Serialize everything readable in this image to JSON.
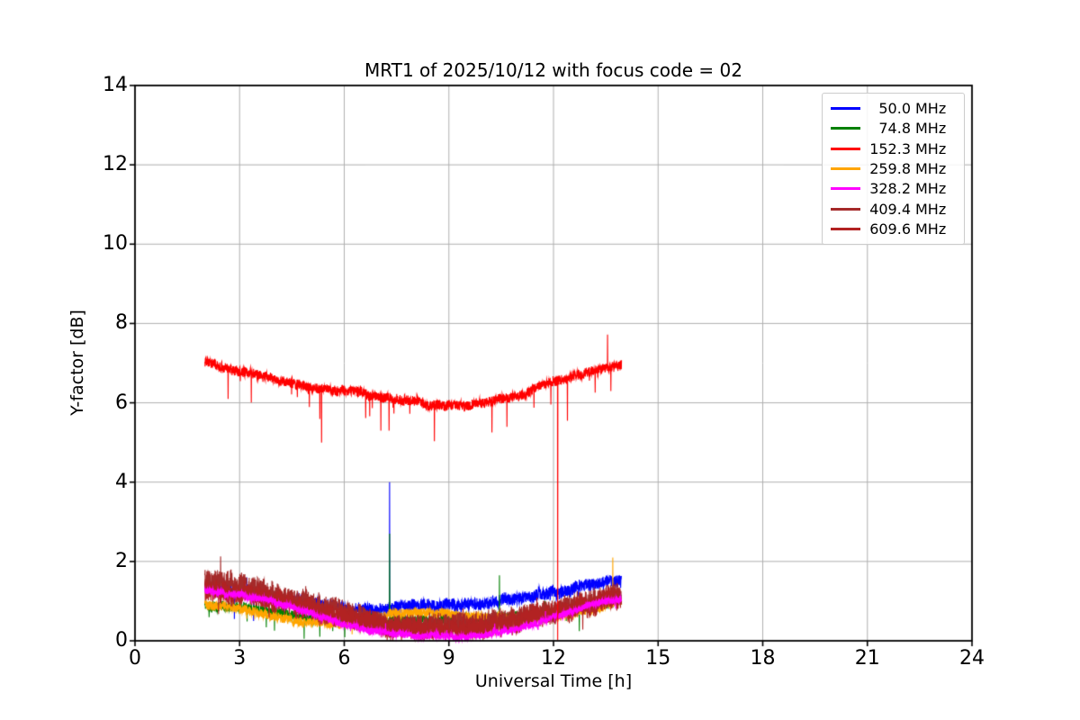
{
  "chart_data": {
    "type": "line",
    "title": "MRT1 of 2025/10/12 with focus code = 02",
    "xlabel": "Universal Time [h]",
    "ylabel": "Y-factor [dB]",
    "xlim": [
      0,
      24
    ],
    "ylim": [
      0,
      14
    ],
    "xticks": [
      0,
      3,
      6,
      9,
      12,
      15,
      18,
      21,
      24
    ],
    "yticks": [
      0,
      2,
      4,
      6,
      8,
      10,
      12,
      14
    ],
    "grid": true,
    "grid_color": "#b0b0b0",
    "axis_color": "#000000",
    "legend_position": "upper right",
    "time_range_hours": [
      2.0,
      13.95
    ],
    "control_hours": [
      2,
      3,
      4,
      5,
      6,
      7,
      8,
      9,
      10,
      11,
      12,
      13,
      14
    ],
    "series": [
      {
        "label": "50.0 MHz",
        "color": "#0000ff",
        "mean": [
          1.35,
          1.25,
          1.1,
          0.95,
          0.82,
          0.8,
          0.88,
          0.92,
          0.95,
          1.05,
          1.2,
          1.4,
          1.55
        ],
        "noise_amp": 0.16,
        "dip_p": 0.004,
        "dip_max": 0.55,
        "spikes": [
          {
            "t": 7.3,
            "v": 4.0
          },
          {
            "t": 2.85,
            "v": 0.55
          },
          {
            "t": 3.4,
            "v": 0.5
          }
        ]
      },
      {
        "label": "74.8 MHz",
        "color": "#008000",
        "mean": [
          0.9,
          0.85,
          0.72,
          0.55,
          0.48,
          0.52,
          0.55,
          0.55,
          0.55,
          0.62,
          0.72,
          0.88,
          1.05
        ],
        "noise_amp": 0.13,
        "dip_p": 0.006,
        "dip_max": 0.45,
        "spikes": [
          {
            "t": 7.3,
            "v": 2.7
          },
          {
            "t": 10.45,
            "v": 1.65
          },
          {
            "t": 4.85,
            "v": 0.05
          },
          {
            "t": 5.3,
            "v": 0.1
          }
        ]
      },
      {
        "label": "152.3 MHz",
        "color": "#ff0000",
        "mean": [
          7.0,
          6.8,
          6.6,
          6.4,
          6.3,
          6.2,
          6.0,
          5.95,
          6.0,
          6.2,
          6.55,
          6.75,
          6.95
        ],
        "noise_amp": 0.13,
        "dip_p": 0.008,
        "dip_max": 0.9,
        "spikes": [
          {
            "t": 12.12,
            "v": 0.02
          },
          {
            "t": 13.55,
            "v": 7.72
          },
          {
            "t": 5.35,
            "v": 5.0
          },
          {
            "t": 7.05,
            "v": 5.3
          },
          {
            "t": 12.4,
            "v": 5.55
          }
        ]
      },
      {
        "label": "259.8 MHz",
        "color": "#ffa500",
        "mean": [
          0.9,
          0.82,
          0.62,
          0.45,
          0.42,
          0.62,
          0.72,
          0.68,
          0.6,
          0.55,
          0.62,
          0.78,
          1.02
        ],
        "noise_amp": 0.12,
        "dip_p": 0.002,
        "dip_max": 0.3,
        "spikes": [
          {
            "t": 13.7,
            "v": 2.1
          }
        ]
      },
      {
        "label": "328.2 MHz",
        "color": "#ff00ff",
        "mean": [
          1.25,
          1.15,
          0.98,
          0.7,
          0.42,
          0.22,
          0.13,
          0.1,
          0.15,
          0.28,
          0.6,
          0.88,
          1.08
        ],
        "noise_amp": 0.09,
        "dip_p": 0.002,
        "dip_max": 0.15,
        "spikes": []
      },
      {
        "label": "409.4 MHz",
        "color": "#a52a2a",
        "mean": [
          1.55,
          1.42,
          1.22,
          0.95,
          0.7,
          0.45,
          0.38,
          0.38,
          0.45,
          0.58,
          0.78,
          1.0,
          1.2
        ],
        "noise_amp": 0.3,
        "dip_p": 0.002,
        "dip_max": 0.3,
        "spikes": []
      },
      {
        "label": "609.6 MHz",
        "color": "#b22222",
        "mean": [
          1.3,
          1.2,
          1.02,
          0.8,
          0.58,
          0.35,
          0.28,
          0.28,
          0.35,
          0.48,
          0.68,
          0.88,
          1.05
        ],
        "noise_amp": 0.28,
        "dip_p": 0.002,
        "dip_max": 0.3,
        "spikes": []
      }
    ],
    "draw_order": [
      0,
      1,
      3,
      5,
      6,
      4,
      2
    ]
  },
  "legend": {
    "unit": "MHz"
  }
}
